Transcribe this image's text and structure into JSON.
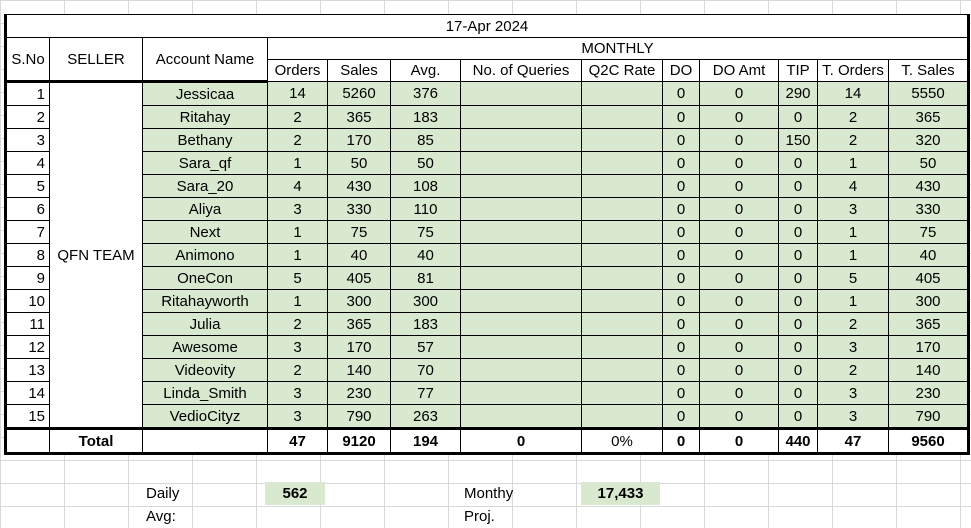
{
  "date": "17-Apr 2024",
  "headers": {
    "sno": "S.No",
    "seller": "SELLER",
    "account": "Account Name",
    "monthly": "MONTHLY",
    "cols": [
      "Orders",
      "Sales",
      "Avg.",
      "No. of Queries",
      "Q2C Rate",
      "DO",
      "DO Amt",
      "TIP",
      "T. Orders",
      "T. Sales"
    ]
  },
  "seller_name": "QFN TEAM",
  "rows": [
    {
      "sno": "1",
      "account": "Jessicaa",
      "orders": "14",
      "sales": "5260",
      "avg": "376",
      "queries": "",
      "q2c": "",
      "do": "0",
      "do_amt": "0",
      "tip": "290",
      "t_orders": "14",
      "t_sales": "5550"
    },
    {
      "sno": "2",
      "account": "Ritahay",
      "orders": "2",
      "sales": "365",
      "avg": "183",
      "queries": "",
      "q2c": "",
      "do": "0",
      "do_amt": "0",
      "tip": "0",
      "t_orders": "2",
      "t_sales": "365"
    },
    {
      "sno": "3",
      "account": "Bethany",
      "orders": "2",
      "sales": "170",
      "avg": "85",
      "queries": "",
      "q2c": "",
      "do": "0",
      "do_amt": "0",
      "tip": "150",
      "t_orders": "2",
      "t_sales": "320"
    },
    {
      "sno": "4",
      "account": "Sara_qf",
      "orders": "1",
      "sales": "50",
      "avg": "50",
      "queries": "",
      "q2c": "",
      "do": "0",
      "do_amt": "0",
      "tip": "0",
      "t_orders": "1",
      "t_sales": "50"
    },
    {
      "sno": "5",
      "account": "Sara_20",
      "orders": "4",
      "sales": "430",
      "avg": "108",
      "queries": "",
      "q2c": "",
      "do": "0",
      "do_amt": "0",
      "tip": "0",
      "t_orders": "4",
      "t_sales": "430"
    },
    {
      "sno": "6",
      "account": "Aliya",
      "orders": "3",
      "sales": "330",
      "avg": "110",
      "queries": "",
      "q2c": "",
      "do": "0",
      "do_amt": "0",
      "tip": "0",
      "t_orders": "3",
      "t_sales": "330"
    },
    {
      "sno": "7",
      "account": "Next",
      "orders": "1",
      "sales": "75",
      "avg": "75",
      "queries": "",
      "q2c": "",
      "do": "0",
      "do_amt": "0",
      "tip": "0",
      "t_orders": "1",
      "t_sales": "75"
    },
    {
      "sno": "8",
      "account": "Animono",
      "orders": "1",
      "sales": "40",
      "avg": "40",
      "queries": "",
      "q2c": "",
      "do": "0",
      "do_amt": "0",
      "tip": "0",
      "t_orders": "1",
      "t_sales": "40"
    },
    {
      "sno": "9",
      "account": "OneCon",
      "orders": "5",
      "sales": "405",
      "avg": "81",
      "queries": "",
      "q2c": "",
      "do": "0",
      "do_amt": "0",
      "tip": "0",
      "t_orders": "5",
      "t_sales": "405"
    },
    {
      "sno": "10",
      "account": "Ritahayworth",
      "orders": "1",
      "sales": "300",
      "avg": "300",
      "queries": "",
      "q2c": "",
      "do": "0",
      "do_amt": "0",
      "tip": "0",
      "t_orders": "1",
      "t_sales": "300"
    },
    {
      "sno": "11",
      "account": "Julia",
      "orders": "2",
      "sales": "365",
      "avg": "183",
      "queries": "",
      "q2c": "",
      "do": "0",
      "do_amt": "0",
      "tip": "0",
      "t_orders": "2",
      "t_sales": "365"
    },
    {
      "sno": "12",
      "account": "Awesome",
      "orders": "3",
      "sales": "170",
      "avg": "57",
      "queries": "",
      "q2c": "",
      "do": "0",
      "do_amt": "0",
      "tip": "0",
      "t_orders": "3",
      "t_sales": "170"
    },
    {
      "sno": "13",
      "account": "Videovity",
      "orders": "2",
      "sales": "140",
      "avg": "70",
      "queries": "",
      "q2c": "",
      "do": "0",
      "do_amt": "0",
      "tip": "0",
      "t_orders": "2",
      "t_sales": "140"
    },
    {
      "sno": "14",
      "account": "Linda_Smith",
      "orders": "3",
      "sales": "230",
      "avg": "77",
      "queries": "",
      "q2c": "",
      "do": "0",
      "do_amt": "0",
      "tip": "0",
      "t_orders": "3",
      "t_sales": "230"
    },
    {
      "sno": "15",
      "account": "VedioCityz",
      "orders": "3",
      "sales": "790",
      "avg": "263",
      "queries": "",
      "q2c": "",
      "do": "0",
      "do_amt": "0",
      "tip": "0",
      "t_orders": "3",
      "t_sales": "790"
    }
  ],
  "total": {
    "label": "Total",
    "orders": "47",
    "sales": "9120",
    "avg": "194",
    "queries": "0",
    "q2c": "0%",
    "do": "0",
    "do_amt": "0",
    "tip": "440",
    "t_orders": "47",
    "t_sales": "9560"
  },
  "footer": {
    "daily_avg_label": "Daily Avg:",
    "daily_avg_value": "562",
    "monthly_proj_label": "Monthy Proj.",
    "monthly_proj_value": "17,433"
  },
  "colors": {
    "cell_green": "#d8e9d0",
    "grid": "#d9d9d9",
    "border": "#000000"
  }
}
